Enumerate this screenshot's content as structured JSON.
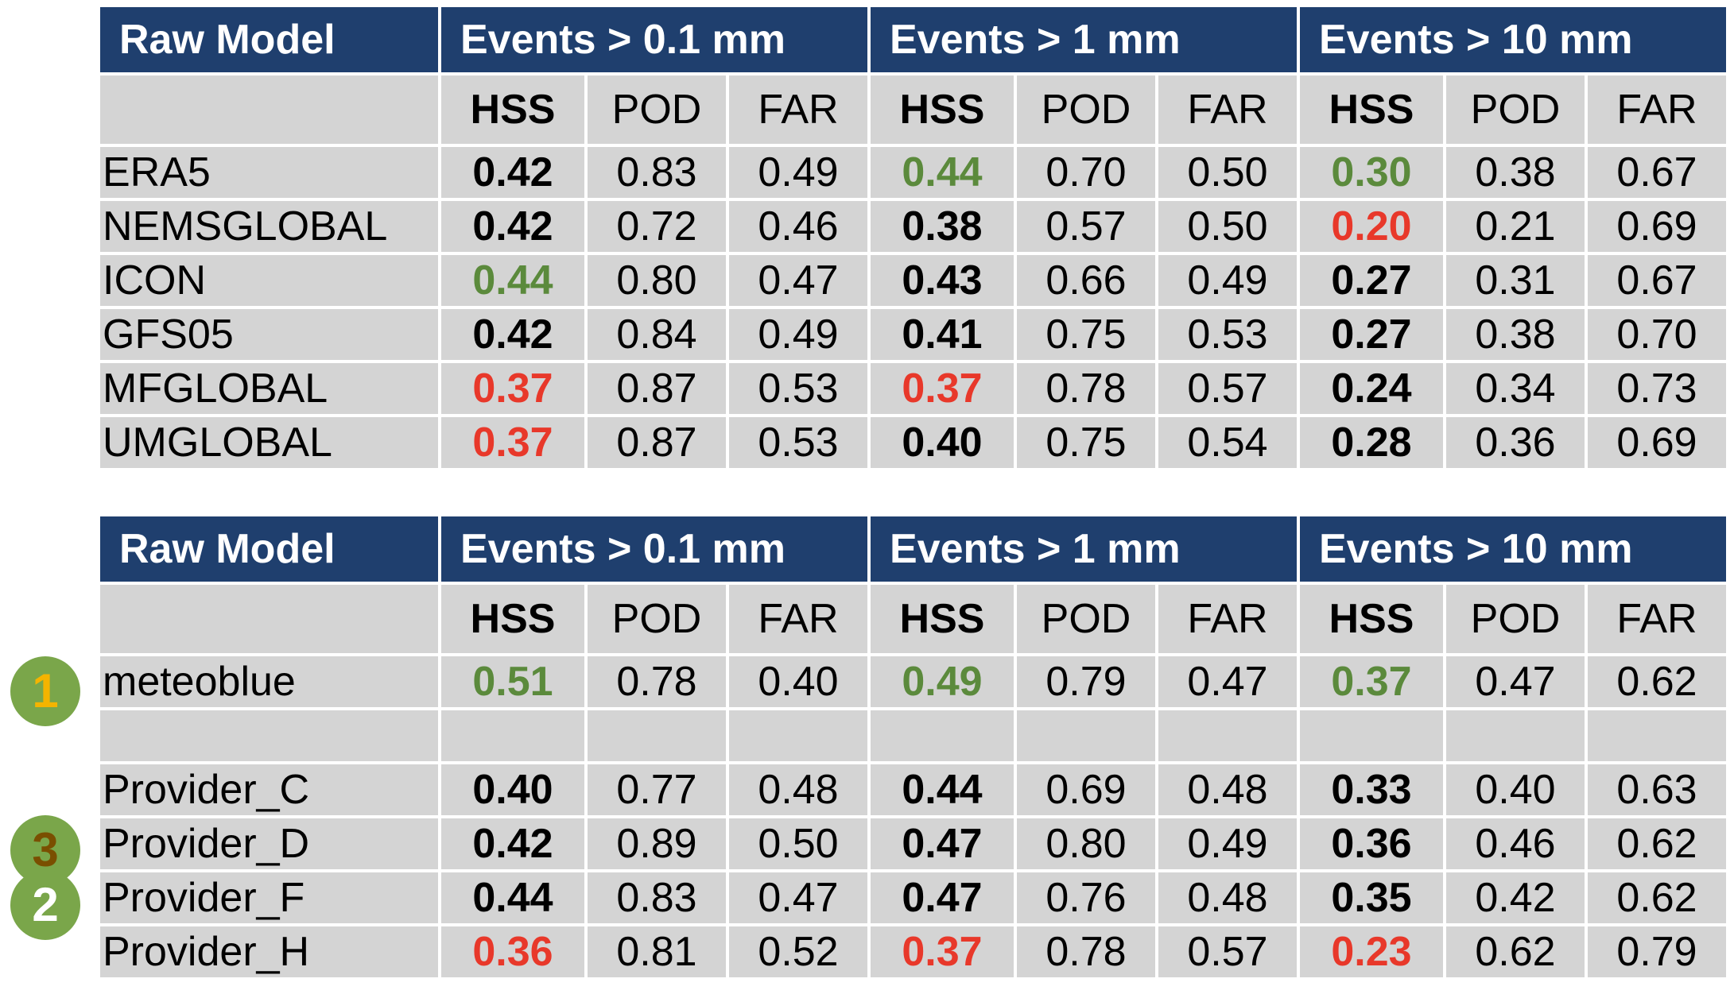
{
  "table1": {
    "header": {
      "model": "Raw Model",
      "groups": [
        "Events > 0.1 mm",
        "Events > 1 mm",
        "Events > 10 mm"
      ]
    },
    "metrics": [
      "HSS",
      "POD",
      "FAR"
    ],
    "rows": [
      {
        "name": "ERA5",
        "values": [
          "0.42",
          "0.83",
          "0.49",
          "0.44",
          "0.70",
          "0.50",
          "0.30",
          "0.38",
          "0.67"
        ],
        "hss_status": [
          "normal",
          "best",
          "best"
        ]
      },
      {
        "name": "NEMSGLOBAL",
        "values": [
          "0.42",
          "0.72",
          "0.46",
          "0.38",
          "0.57",
          "0.50",
          "0.20",
          "0.21",
          "0.69"
        ],
        "hss_status": [
          "normal",
          "normal",
          "worst"
        ]
      },
      {
        "name": "ICON",
        "values": [
          "0.44",
          "0.80",
          "0.47",
          "0.43",
          "0.66",
          "0.49",
          "0.27",
          "0.31",
          "0.67"
        ],
        "hss_status": [
          "best",
          "normal",
          "normal"
        ]
      },
      {
        "name": "GFS05",
        "values": [
          "0.42",
          "0.84",
          "0.49",
          "0.41",
          "0.75",
          "0.53",
          "0.27",
          "0.38",
          "0.70"
        ],
        "hss_status": [
          "normal",
          "normal",
          "normal"
        ]
      },
      {
        "name": "MFGLOBAL",
        "values": [
          "0.37",
          "0.87",
          "0.53",
          "0.37",
          "0.78",
          "0.57",
          "0.24",
          "0.34",
          "0.73"
        ],
        "hss_status": [
          "worst",
          "worst",
          "normal"
        ]
      },
      {
        "name": "UMGLOBAL",
        "values": [
          "0.37",
          "0.87",
          "0.53",
          "0.40",
          "0.75",
          "0.54",
          "0.28",
          "0.36",
          "0.69"
        ],
        "hss_status": [
          "worst",
          "normal",
          "normal"
        ]
      }
    ]
  },
  "table2": {
    "header": {
      "model": "Raw Model",
      "groups": [
        "Events > 0.1 mm",
        "Events > 1 mm",
        "Events > 10 mm"
      ]
    },
    "metrics": [
      "HSS",
      "POD",
      "FAR"
    ],
    "rows": [
      {
        "name": "meteoblue",
        "values": [
          "0.51",
          "0.78",
          "0.40",
          "0.49",
          "0.79",
          "0.47",
          "0.37",
          "0.47",
          "0.62"
        ],
        "hss_status": [
          "best",
          "best",
          "best"
        ]
      },
      {
        "name": "",
        "values": [
          "",
          "",
          "",
          "",
          "",
          "",
          "",
          "",
          ""
        ],
        "hss_status": [
          "normal",
          "normal",
          "normal"
        ]
      },
      {
        "name": "Provider_C",
        "values": [
          "0.40",
          "0.77",
          "0.48",
          "0.44",
          "0.69",
          "0.48",
          "0.33",
          "0.40",
          "0.63"
        ],
        "hss_status": [
          "normal",
          "normal",
          "normal"
        ]
      },
      {
        "name": "Provider_D",
        "values": [
          "0.42",
          "0.89",
          "0.50",
          "0.47",
          "0.80",
          "0.49",
          "0.36",
          "0.46",
          "0.62"
        ],
        "hss_status": [
          "normal",
          "normal",
          "normal"
        ]
      },
      {
        "name": "Provider_F",
        "values": [
          "0.44",
          "0.83",
          "0.47",
          "0.47",
          "0.76",
          "0.48",
          "0.35",
          "0.42",
          "0.62"
        ],
        "hss_status": [
          "normal",
          "normal",
          "normal"
        ]
      },
      {
        "name": "Provider_H",
        "values": [
          "0.36",
          "0.81",
          "0.52",
          "0.37",
          "0.78",
          "0.57",
          "0.23",
          "0.62",
          "0.79"
        ],
        "hss_status": [
          "worst",
          "worst",
          "worst"
        ]
      }
    ]
  },
  "badges": {
    "first": "1",
    "second": "2",
    "third": "3"
  },
  "colors": {
    "header_bg": "#1f3f6e",
    "cell_bg": "#d4d4d4",
    "best": "#5b8a3c",
    "worst": "#e8382a",
    "badge": "#7aa64a"
  }
}
